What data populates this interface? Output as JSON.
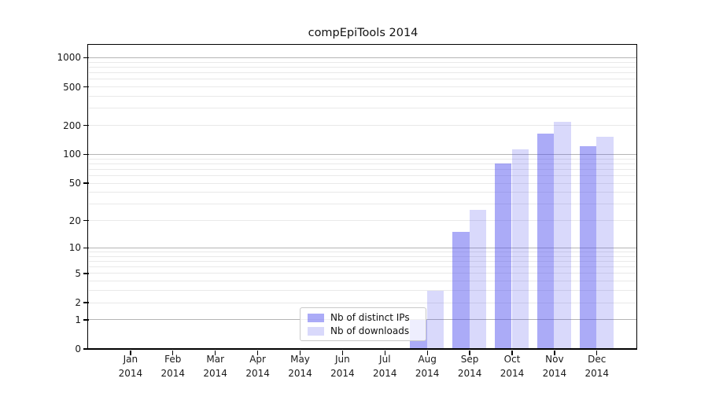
{
  "title": "compEpiTools 2014",
  "legend": {
    "items": [
      {
        "label": "Nb of distinct IPs"
      },
      {
        "label": "Nb of downloads"
      }
    ]
  },
  "colors": {
    "bar_dark_fill": "rgba(77,77,238,0.47)",
    "bar_light_fill": "rgba(77,77,238,0.21)",
    "major_gridline": "#b5b5b5",
    "minor_gridline": "#e9e9e9",
    "axis": "#000000"
  },
  "chart_data": {
    "type": "bar",
    "title": "compEpiTools 2014",
    "categories": [
      "Jan",
      "Feb",
      "Mar",
      "Apr",
      "May",
      "Jun",
      "Jul",
      "Aug",
      "Sep",
      "Oct",
      "Nov",
      "Dec"
    ],
    "year_label": "2014",
    "series": [
      {
        "name": "Nb of distinct IPs",
        "values": [
          0,
          0,
          0,
          0,
          0,
          0,
          0,
          1,
          15,
          81,
          164,
          122
        ]
      },
      {
        "name": "Nb of downloads",
        "values": [
          0,
          0,
          0,
          0,
          0,
          0,
          0,
          3,
          26,
          114,
          218,
          153
        ]
      }
    ],
    "y_scale": "log1p",
    "ylim": [
      0,
      1320
    ],
    "y_ticks": [
      0,
      1,
      2,
      5,
      10,
      20,
      50,
      100,
      200,
      500,
      1000
    ],
    "y_major_gridlines": [
      1,
      10,
      100,
      1000
    ],
    "y_minor_gridlines": [
      2,
      3,
      4,
      5,
      6,
      7,
      8,
      9,
      20,
      30,
      40,
      50,
      60,
      70,
      80,
      90,
      200,
      300,
      400,
      500,
      600,
      700,
      800,
      900
    ],
    "grid": true,
    "legend_position": "lower center",
    "xlabel": "",
    "ylabel": ""
  }
}
